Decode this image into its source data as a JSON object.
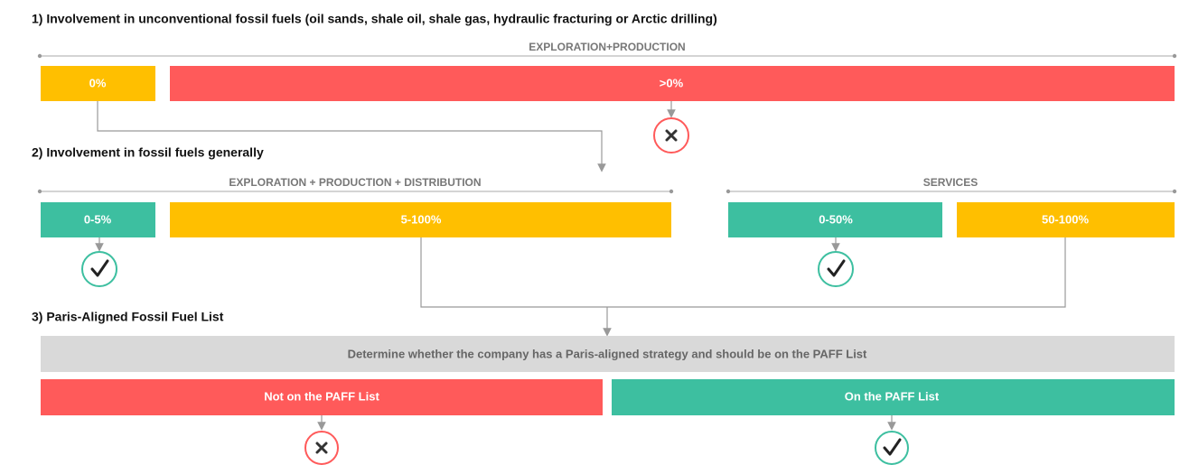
{
  "steps": [
    {
      "title": "1) Involvement in unconventional fossil fuels (oil sands, shale oil, shale gas, hydraulic fracturing or Arctic drilling)",
      "groups": [
        {
          "label": "EXPLORATION+PRODUCTION",
          "boxes": [
            "0%",
            ">0%"
          ]
        }
      ]
    },
    {
      "title": "2) Involvement in fossil fuels generally",
      "groups": [
        {
          "label": "EXPLORATION + PRODUCTION + DISTRIBUTION",
          "boxes": [
            "0-5%",
            "5-100%"
          ]
        },
        {
          "label": "SERVICES",
          "boxes": [
            "0-50%",
            "50-100%"
          ]
        }
      ]
    },
    {
      "title": "3) Paris-Aligned Fossil Fuel List",
      "question": "Determine whether the company has a Paris-aligned strategy and should be on the PAFF List",
      "boxes": [
        "Not on the PAFF List",
        "On the PAFF List"
      ]
    }
  ]
}
